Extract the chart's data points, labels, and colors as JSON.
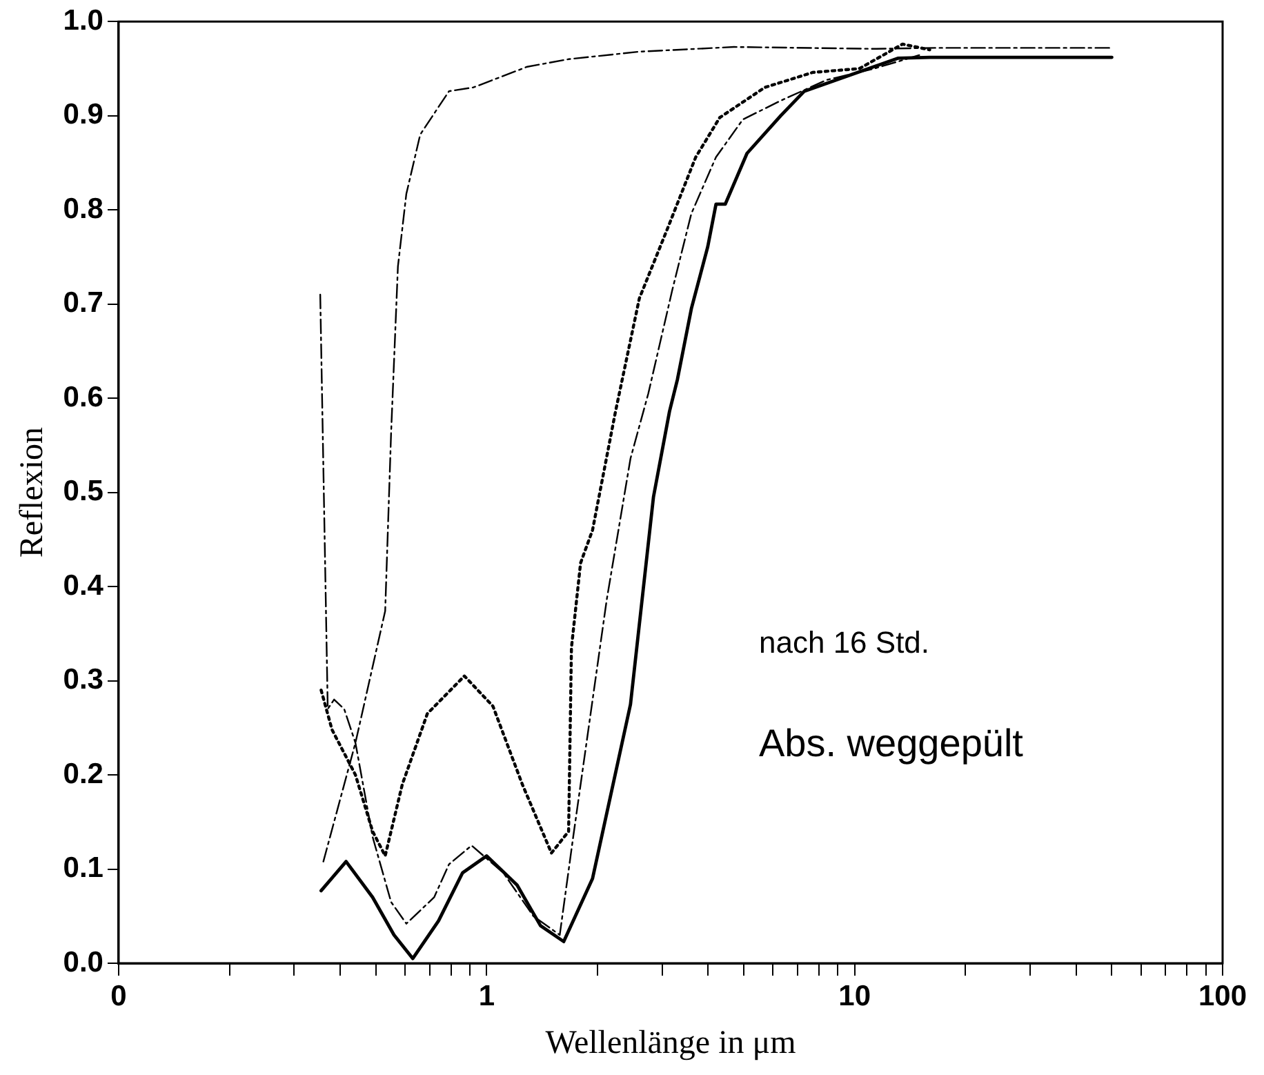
{
  "chart_data": {
    "type": "line",
    "xlabel": "Wellenlänge in μm",
    "ylabel": "Reflexion",
    "log": "x",
    "grid": false,
    "legend": false,
    "marker": "none",
    "xlim": [
      0.1,
      100
    ],
    "ylim": [
      0,
      1
    ],
    "xticks": [
      {
        "value": 0.1,
        "label": "0"
      },
      {
        "value": 0.2,
        "label": null
      },
      {
        "value": 0.3,
        "label": null
      },
      {
        "value": 0.4,
        "label": null
      },
      {
        "value": 0.5,
        "label": null
      },
      {
        "value": 0.6,
        "label": null
      },
      {
        "value": 0.7,
        "label": null
      },
      {
        "value": 0.8,
        "label": null
      },
      {
        "value": 0.9,
        "label": null
      },
      1,
      {
        "value": 2,
        "label": null
      },
      {
        "value": 3,
        "label": null
      },
      {
        "value": 4,
        "label": null
      },
      {
        "value": 5,
        "label": null
      },
      {
        "value": 6,
        "label": null
      },
      {
        "value": 7,
        "label": null
      },
      {
        "value": 8,
        "label": null
      },
      {
        "value": 9,
        "label": null
      },
      10,
      {
        "value": 20,
        "label": null
      },
      {
        "value": 30,
        "label": null
      },
      {
        "value": 40,
        "label": null
      },
      {
        "value": 50,
        "label": null
      },
      {
        "value": 60,
        "label": null
      },
      {
        "value": 70,
        "label": null
      },
      {
        "value": 80,
        "label": null
      },
      {
        "value": 90,
        "label": null
      },
      100
    ],
    "yticks": [
      {
        "value": 0,
        "label": "0.0"
      },
      0.1,
      0.2,
      0.3,
      0.4,
      0.5,
      0.6,
      0.7,
      0.8,
      0.9,
      {
        "value": 1,
        "label": "1.0"
      }
    ],
    "annotations": [
      "nach 16 Std.",
      "Abs. weggepült"
    ],
    "series": [
      {
        "color": "#000000",
        "line_style": "dashed",
        "x": [
          0.353,
          0.37,
          0.385,
          0.41,
          0.44,
          0.49,
          0.55,
          0.605,
          0.72,
          0.79,
          0.91,
          1.11,
          1.34,
          1.58,
          1.72,
          2.12,
          2.46,
          2.75,
          3.2,
          3.6,
          4.2,
          4.97,
          6.3,
          8.4,
          11.3,
          15.2
        ],
        "values": [
          0.71,
          0.27,
          0.28,
          0.27,
          0.234,
          0.134,
          0.065,
          0.042,
          0.07,
          0.105,
          0.125,
          0.096,
          0.05,
          0.03,
          0.135,
          0.386,
          0.536,
          0.605,
          0.716,
          0.796,
          0.856,
          0.896,
          0.916,
          0.938,
          0.95,
          0.965
        ]
      },
      {
        "color": "#000000",
        "line_style": "dashed",
        "x": [
          0.36,
          0.44,
          0.53,
          0.55,
          0.574,
          0.605,
          0.66,
          0.79,
          0.92,
          1.29,
          1.67,
          2.6,
          4.7,
          11.3,
          16.6,
          50
        ],
        "values": [
          0.108,
          0.234,
          0.374,
          0.563,
          0.74,
          0.817,
          0.88,
          0.926,
          0.93,
          0.952,
          0.96,
          0.968,
          0.973,
          0.971,
          0.972,
          0.972
        ]
      },
      {
        "color": "#000000",
        "line_style": "dotted",
        "x": [
          0.355,
          0.38,
          0.44,
          0.49,
          0.53,
          0.59,
          0.69,
          0.87,
          1.04,
          1.25,
          1.5,
          1.67,
          1.7,
          1.8,
          1.94,
          2.24,
          2.6,
          3.1,
          3.7,
          4.3,
          5.7,
          7.7,
          10.3,
          13.5,
          16
        ],
        "values": [
          0.29,
          0.248,
          0.2,
          0.14,
          0.114,
          0.19,
          0.265,
          0.305,
          0.273,
          0.19,
          0.117,
          0.14,
          0.335,
          0.425,
          0.46,
          0.586,
          0.706,
          0.78,
          0.856,
          0.898,
          0.93,
          0.946,
          0.95,
          0.976,
          0.97
        ]
      },
      {
        "color": "#000000",
        "line_style": "solid",
        "x": [
          0.355,
          0.415,
          0.49,
          0.56,
          0.63,
          0.74,
          0.86,
          1.0,
          1.21,
          1.4,
          1.62,
          1.94,
          2.46,
          2.84,
          3.14,
          3.3,
          3.6,
          3.99,
          4.2,
          4.45,
          5.1,
          6.3,
          7.3,
          9.7,
          13.1,
          16,
          50
        ],
        "values": [
          0.077,
          0.108,
          0.07,
          0.03,
          0.005,
          0.045,
          0.096,
          0.114,
          0.083,
          0.04,
          0.023,
          0.09,
          0.275,
          0.495,
          0.586,
          0.62,
          0.695,
          0.761,
          0.806,
          0.806,
          0.86,
          0.9,
          0.926,
          0.943,
          0.961,
          0.962,
          0.962
        ]
      }
    ]
  }
}
